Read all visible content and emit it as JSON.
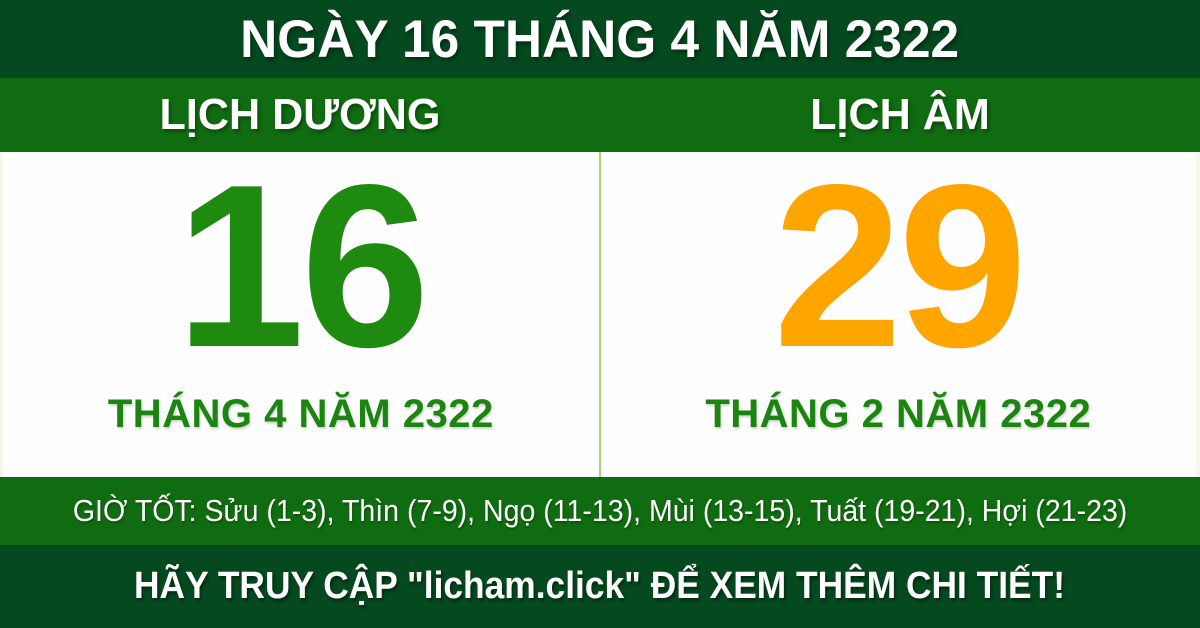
{
  "header": {
    "title": "NGÀY 16 THÁNG 4 NĂM 2322"
  },
  "solar": {
    "label": "LỊCH DƯƠNG",
    "day": "16",
    "month_year": "THÁNG 4 NĂM 2322"
  },
  "lunar": {
    "label": "LỊCH ÂM",
    "day": "29",
    "month_year": "THÁNG 2 NĂM 2322"
  },
  "good_hours": {
    "text": "GIỜ TỐT: Sửu (1-3), Thìn (7-9), Ngọ (11-13), Mùi (13-15), Tuất (19-21), Hợi (21-23)"
  },
  "footer": {
    "text": "HÃY TRUY CẬP \"licham.click\" ĐỂ XEM THÊM CHI TIẾT!"
  },
  "colors": {
    "dark-green": "#05491e",
    "band-green": "#106c10",
    "day-green": "#1e8b10",
    "month-green": "#1b850f",
    "lunar-orange": "#fea500",
    "divider-green": "#a8d46f",
    "pale-edge": "#f3f8e8",
    "text-white": "#ffffff"
  }
}
